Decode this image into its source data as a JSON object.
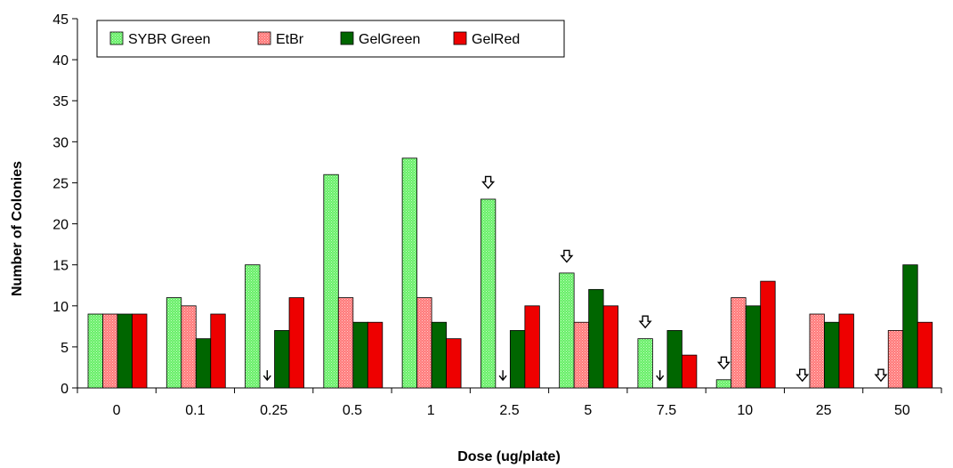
{
  "chart_data": {
    "type": "bar",
    "title": "",
    "xlabel": "Dose (ug/plate)",
    "ylabel": "Number of Colonies",
    "ylim": [
      0,
      45
    ],
    "yticks": [
      0,
      5,
      10,
      15,
      20,
      25,
      30,
      35,
      40,
      45
    ],
    "grid": false,
    "legend_position": "top-left",
    "categories": [
      "0",
      "0.1",
      "0.25",
      "0.5",
      "1",
      "2.5",
      "5",
      "7.5",
      "10",
      "25",
      "50"
    ],
    "series": [
      {
        "name": "SYBR Green",
        "color": "#66ee66",
        "pattern": "dotted",
        "values": [
          9,
          11,
          15,
          26,
          28,
          23,
          14,
          6,
          1,
          null,
          null
        ]
      },
      {
        "name": "EtBr",
        "color": "#ff7777",
        "pattern": "dotted",
        "values": [
          9,
          10,
          null,
          11,
          11,
          null,
          8,
          null,
          11,
          9,
          7
        ]
      },
      {
        "name": "GelGreen",
        "color": "#006600",
        "pattern": "solid",
        "values": [
          9,
          6,
          7,
          8,
          8,
          7,
          12,
          7,
          10,
          8,
          15
        ]
      },
      {
        "name": "GelRed",
        "color": "#ee0000",
        "pattern": "solid",
        "values": [
          9,
          9,
          11,
          8,
          6,
          10,
          10,
          4,
          13,
          9,
          8
        ]
      }
    ],
    "annotations": [
      {
        "type": "small-arrow",
        "series": "EtBr",
        "category": "0.25",
        "y": 1.5
      },
      {
        "type": "small-arrow",
        "series": "EtBr",
        "category": "2.5",
        "y": 1.5
      },
      {
        "type": "small-arrow",
        "series": "EtBr",
        "category": "7.5",
        "y": 1.5
      },
      {
        "type": "block-arrow",
        "series": "SYBR Green",
        "category": "2.5",
        "y": 25
      },
      {
        "type": "block-arrow",
        "series": "SYBR Green",
        "category": "5",
        "y": 16
      },
      {
        "type": "block-arrow",
        "series": "SYBR Green",
        "category": "7.5",
        "y": 8
      },
      {
        "type": "block-arrow",
        "series": "SYBR Green",
        "category": "10",
        "y": 3
      },
      {
        "type": "block-arrow",
        "series": "SYBR Green",
        "category": "25",
        "y": 1.5
      },
      {
        "type": "block-arrow",
        "series": "SYBR Green",
        "category": "50",
        "y": 1.5
      }
    ]
  }
}
